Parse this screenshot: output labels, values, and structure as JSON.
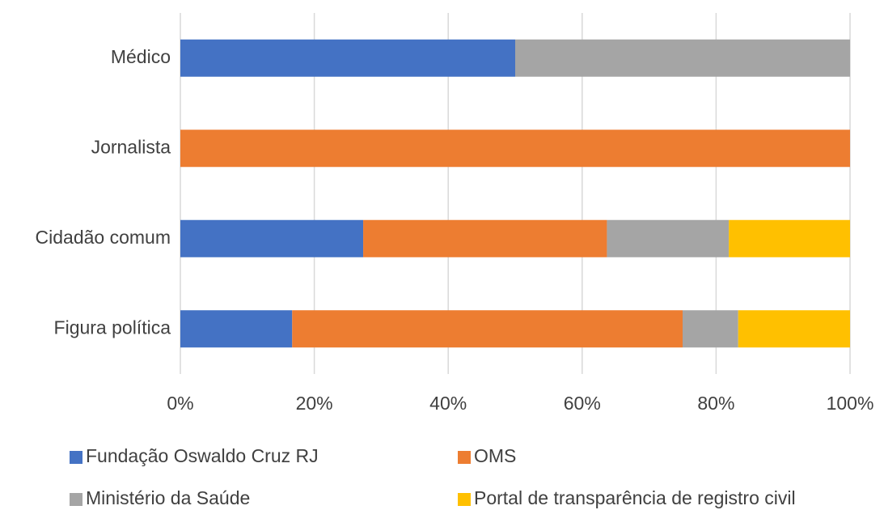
{
  "chart_data": {
    "type": "stacked-bar-horizontal",
    "categories": [
      "Médico",
      "Jornalista",
      "Cidadão comum",
      "Figura política"
    ],
    "series": [
      {
        "name": "Fundação Oswaldo Cruz RJ",
        "color": "#4472c4",
        "values": [
          50,
          0,
          27.3,
          16.7
        ]
      },
      {
        "name": "OMS",
        "color": "#ed7d31",
        "values": [
          0,
          100,
          36.4,
          58.3
        ]
      },
      {
        "name": "Ministério da Saúde",
        "color": "#a5a5a5",
        "values": [
          50,
          0,
          18.2,
          8.3
        ]
      },
      {
        "name": "Portal de transparência de registro civil",
        "color": "#ffc000",
        "values": [
          0,
          0,
          18.1,
          16.7
        ]
      }
    ],
    "xlim": [
      0,
      100
    ],
    "xticks": [
      {
        "value": 0,
        "label": "0%"
      },
      {
        "value": 20,
        "label": "20%"
      },
      {
        "value": 40,
        "label": "40%"
      },
      {
        "value": 60,
        "label": "60%"
      },
      {
        "value": 80,
        "label": "80%"
      },
      {
        "value": 100,
        "label": "100%"
      }
    ],
    "grid": true
  }
}
